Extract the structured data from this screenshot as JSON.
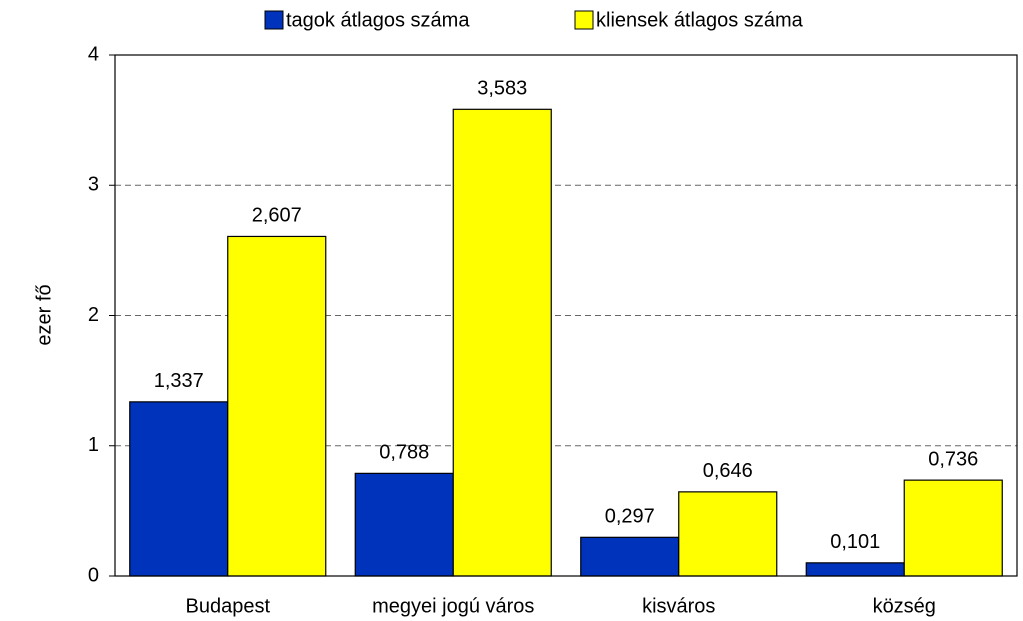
{
  "chart_data": {
    "type": "bar",
    "y_label": "ezer fő",
    "categories": [
      "Budapest",
      "megyei jogú város",
      "kisváros",
      "község"
    ],
    "series": [
      {
        "name": "tagok átlagos száma",
        "color": "#0033bb",
        "values": [
          1.337,
          0.788,
          0.297,
          0.101
        ],
        "value_labels": [
          "1,337",
          "0,788",
          "0,297",
          "0,101"
        ]
      },
      {
        "name": "kliensek átlagos száma",
        "color": "#ffff00",
        "values": [
          2.607,
          3.583,
          0.646,
          0.736
        ],
        "value_labels": [
          "2,607",
          "3,583",
          "0,646",
          "0,736"
        ]
      }
    ],
    "ylim": [
      0,
      4
    ],
    "yticks": [
      0,
      1,
      2,
      3,
      4
    ],
    "grid": true,
    "legend": "top"
  }
}
